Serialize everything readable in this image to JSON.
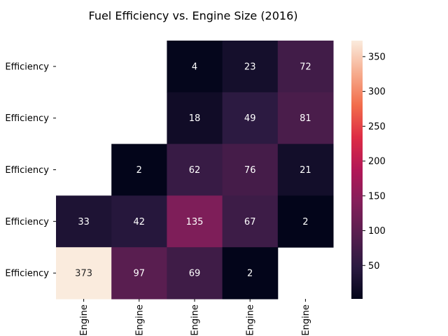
{
  "chart_data": {
    "type": "heatmap",
    "title": "Fuel Efficiency vs. Engine Size (2016)",
    "row_labels": [
      "Efficiency",
      "Efficiency",
      "Efficiency",
      "Efficiency",
      "Efficiency"
    ],
    "col_labels": [
      "Engine",
      "Engine",
      "Engine",
      "Engine",
      "Engine"
    ],
    "values": [
      [
        null,
        null,
        4,
        23,
        72
      ],
      [
        null,
        null,
        18,
        49,
        81
      ],
      [
        null,
        2,
        62,
        76,
        21
      ],
      [
        33,
        42,
        135,
        67,
        2
      ],
      [
        373,
        97,
        69,
        2,
        null
      ]
    ],
    "colorbar": {
      "ticks": [
        50,
        100,
        150,
        200,
        250,
        300,
        350
      ],
      "range": [
        2,
        373
      ],
      "colormap": "rocket"
    }
  }
}
